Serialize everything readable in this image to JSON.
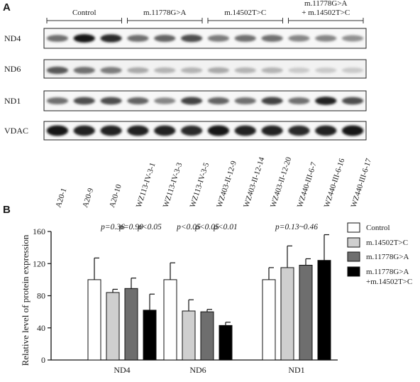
{
  "panel_a": {
    "label": "A",
    "groups": [
      {
        "name": "Control",
        "lines": [
          "Control"
        ],
        "lanes": 3
      },
      {
        "name": "m.11778G>A",
        "lines": [
          "m.11778G>A"
        ],
        "lanes": 3
      },
      {
        "name": "m.14502T>C",
        "lines": [
          "m.14502T>C"
        ],
        "lanes": 3
      },
      {
        "name": "m.11778G>A + m.14502T>C",
        "lines": [
          "m.11778G>A",
          "+ m.14502T>C"
        ],
        "lanes": 3
      }
    ],
    "blots": [
      {
        "label": "ND4",
        "intensity": [
          0.55,
          0.95,
          0.85,
          0.55,
          0.6,
          0.7,
          0.5,
          0.55,
          0.55,
          0.45,
          0.45,
          0.4
        ]
      },
      {
        "label": "ND6",
        "intensity": [
          0.65,
          0.55,
          0.5,
          0.3,
          0.25,
          0.25,
          0.3,
          0.25,
          0.25,
          0.15,
          0.15,
          0.15
        ]
      },
      {
        "label": "ND1",
        "intensity": [
          0.55,
          0.7,
          0.7,
          0.6,
          0.45,
          0.75,
          0.6,
          0.55,
          0.75,
          0.55,
          0.9,
          0.7
        ]
      },
      {
        "label": "VDAC",
        "intensity": [
          0.95,
          0.9,
          0.9,
          0.9,
          0.9,
          0.85,
          0.95,
          0.9,
          0.9,
          0.85,
          0.9,
          0.95
        ]
      }
    ],
    "lanes": [
      "A20-1",
      "A20-9",
      "A20-10",
      "WZ113-IV-3-1",
      "WZ113-IV-3-3",
      "WZ113-IV-3-5",
      "WZ403-II-12-9",
      "WZ403-II-12-14",
      "WZ403-II-12-20",
      "WZ440-III-6-7",
      "WZ440-III-6-16",
      "WZ440-III-6-17"
    ]
  },
  "panel_b": {
    "label": "B"
  },
  "chart_data": {
    "type": "bar",
    "ylabel": "Relative level of protein expression",
    "ylim": [
      0,
      160
    ],
    "yticks": [
      0,
      40,
      80,
      120,
      160
    ],
    "categories": [
      "ND4",
      "ND6",
      "ND1"
    ],
    "series": [
      {
        "name": "Control",
        "color": "#ffffff",
        "values": [
          100,
          100,
          100
        ],
        "errors": [
          27,
          21,
          15
        ]
      },
      {
        "name": "m.14502T>C",
        "color": "#cfcfcf",
        "values": [
          84,
          61,
          115
        ],
        "errors": [
          4,
          14,
          27
        ]
      },
      {
        "name": "m.11778G>A",
        "color": "#6e6e6e",
        "values": [
          89,
          60,
          118
        ],
        "errors": [
          13,
          3,
          8
        ]
      },
      {
        "name": "m.11778G>A +m.14502T>C",
        "color": "#000000",
        "legend_lines": [
          "m.11778G>A",
          "+m.14502T>C"
        ],
        "values": [
          62,
          43,
          124
        ],
        "errors": [
          20,
          4,
          32
        ]
      }
    ],
    "annotations": [
      {
        "category": 0,
        "bar": 1,
        "text": "p=0.36"
      },
      {
        "category": 0,
        "bar": 2,
        "text": "p=0.90"
      },
      {
        "category": 0,
        "bar": 3,
        "text": "p<0.05"
      },
      {
        "category": 1,
        "bar": 1,
        "text": "p<0.05"
      },
      {
        "category": 1,
        "bar": 2,
        "text": "p<0.05"
      },
      {
        "category": 1,
        "bar": 3,
        "text": "p<0.01"
      },
      {
        "category": 2,
        "bar": 1.5,
        "text": "p=0.13~0.46"
      }
    ],
    "legend_position": "right"
  }
}
